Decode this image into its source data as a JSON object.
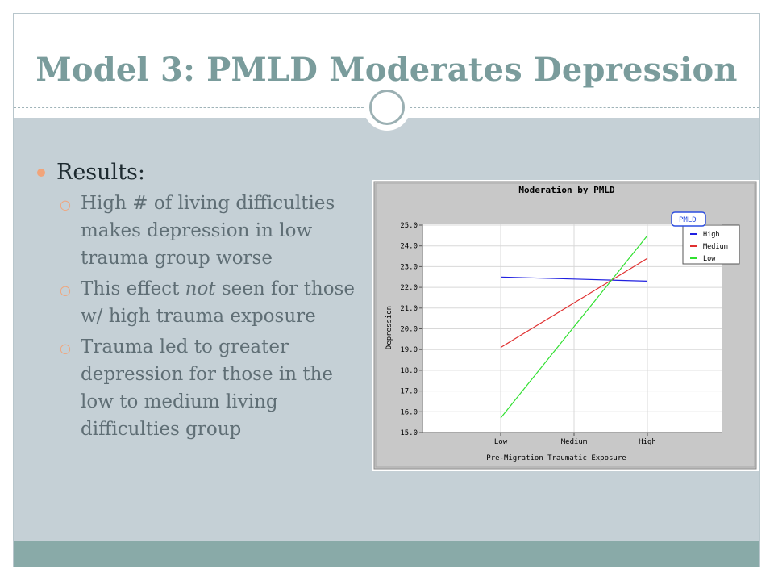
{
  "slide": {
    "title": "Model 3: PMLD Moderates Depression",
    "heading": "Results:",
    "bullets": [
      {
        "segments": [
          {
            "text": "High # of living difficulties makes depression in low trauma group worse",
            "italic": false
          }
        ]
      },
      {
        "segments": [
          {
            "text": "This effect ",
            "italic": false
          },
          {
            "text": "not",
            "italic": true
          },
          {
            "text": " seen for those w/ high trauma exposure",
            "italic": false
          }
        ]
      },
      {
        "segments": [
          {
            "text": "Trauma led to greater depression for those in the low to medium living difficulties group",
            "italic": false
          }
        ]
      }
    ]
  },
  "colors": {
    "title": "#7a9c9c",
    "content_bg": "#c5d0d6",
    "bottom_bar": "#89aaa8",
    "bullet_accent": "#f1a47a",
    "chart_panel": "#c8c8c8",
    "series_high": "#2020e0",
    "series_medium": "#e03030",
    "series_low": "#30e030"
  },
  "chart_data": {
    "type": "line",
    "title": "Moderation by PMLD",
    "xlabel": "Pre-Migration Traumatic Exposure",
    "ylabel": "Depression",
    "categories": [
      "Low",
      "Medium",
      "High"
    ],
    "ylim": [
      15.0,
      25.0
    ],
    "yticks": [
      "15.0",
      "16.0",
      "17.0",
      "18.0",
      "19.0",
      "20.0",
      "21.0",
      "22.0",
      "23.0",
      "24.0",
      "25.0"
    ],
    "grid": true,
    "legend": {
      "title": "PMLD",
      "position": "top-right"
    },
    "series": [
      {
        "name": "High",
        "color": "#2020e0",
        "values": [
          22.5,
          22.4,
          22.3
        ]
      },
      {
        "name": "Medium",
        "color": "#e03030",
        "values": [
          19.1,
          21.25,
          23.4
        ]
      },
      {
        "name": "Low",
        "color": "#30e030",
        "values": [
          15.7,
          20.1,
          24.5
        ]
      }
    ]
  }
}
